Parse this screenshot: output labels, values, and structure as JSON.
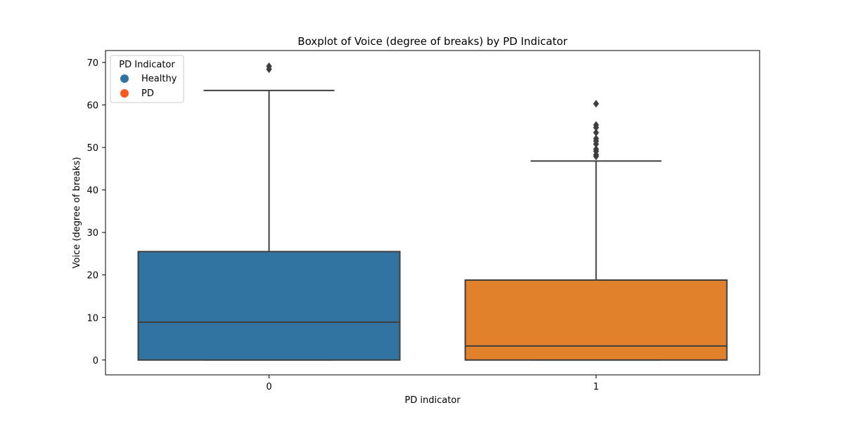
{
  "chart_data": {
    "type": "box",
    "title": "Boxplot of Voice (degree of breaks) by PD Indicator",
    "xlabel": "PD indicator",
    "ylabel": "Voice (degree of breaks)",
    "categories": [
      "0",
      "1"
    ],
    "ylim": [
      -3.5,
      72.8
    ],
    "yticks": [
      0,
      10,
      20,
      30,
      40,
      50,
      60,
      70
    ],
    "grid": false,
    "boxes": [
      {
        "category": "0",
        "q1": 0,
        "median": 8.9,
        "q3": 25.5,
        "whisker_low": 0,
        "whisker_high": 63.4,
        "outliers": [
          68.4,
          69.1
        ],
        "color": "#3274a1"
      },
      {
        "category": "1",
        "q1": 0,
        "median": 3.3,
        "q3": 18.8,
        "whisker_low": 0,
        "whisker_high": 46.8,
        "outliers": [
          47.9,
          48.3,
          49.1,
          49.6,
          50.8,
          51.5,
          52.1,
          53.5,
          54.7,
          55.3,
          60.3
        ],
        "color": "#e1812c"
      }
    ],
    "legend": {
      "title": "PD Indicator",
      "placement": "top-left",
      "entries": [
        {
          "label": "Healthy",
          "color": "#3274a1"
        },
        {
          "label": "PD",
          "color": "#ff5722"
        }
      ]
    },
    "line_color": "#3f3f3f"
  }
}
